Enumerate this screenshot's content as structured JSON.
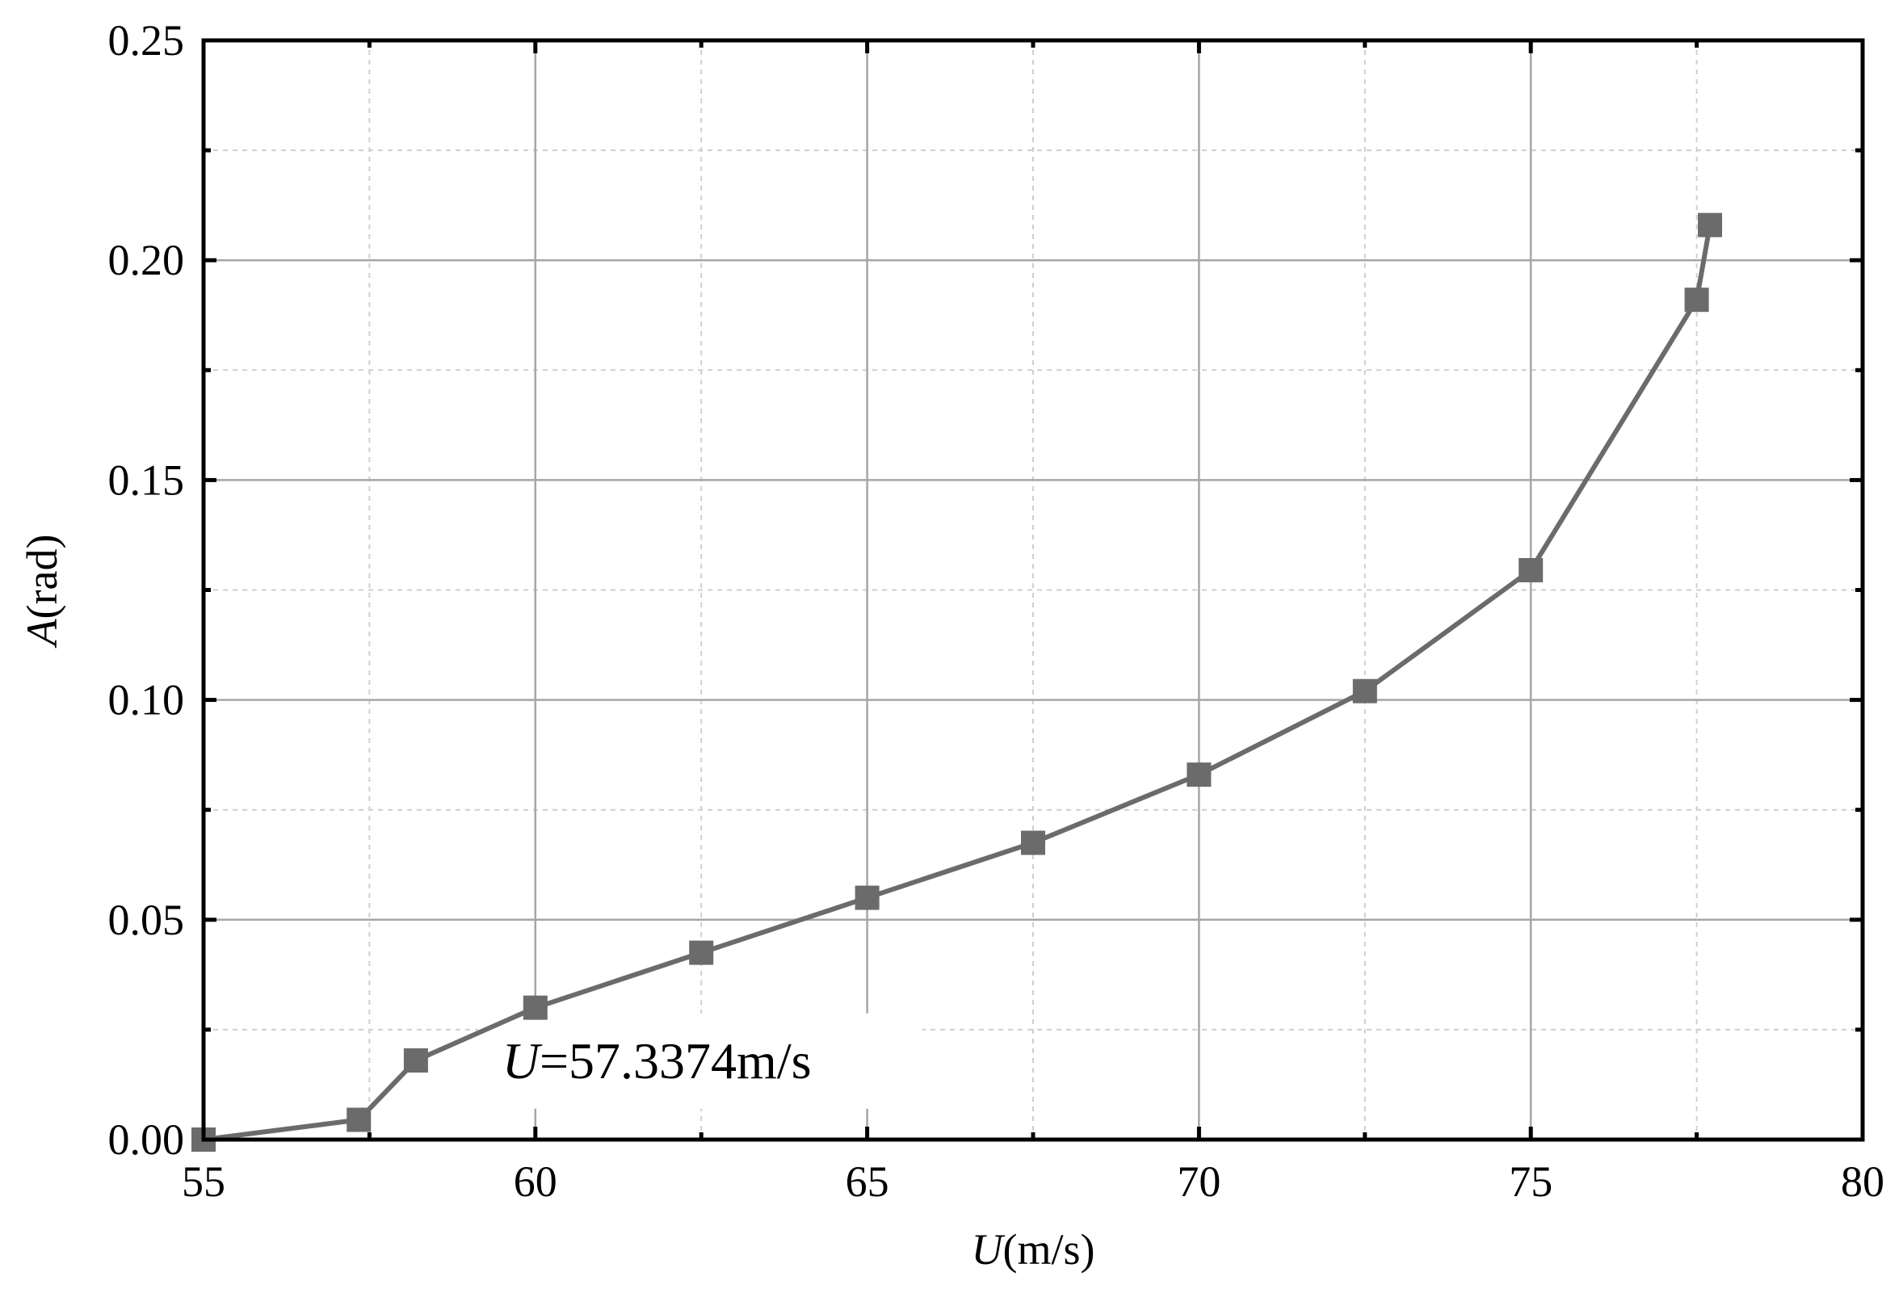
{
  "chart_data": {
    "type": "line",
    "title": "",
    "xlabel": {
      "symbol": "U",
      "unit": "(m/s)"
    },
    "ylabel": {
      "symbol": "A",
      "unit": "(rad)"
    },
    "xlim": [
      55,
      80
    ],
    "ylim": [
      0,
      0.25
    ],
    "x_ticks": [
      55,
      60,
      65,
      70,
      75,
      80
    ],
    "x_tick_labels": [
      "55",
      "60",
      "65",
      "70",
      "75",
      "80"
    ],
    "y_ticks": [
      0,
      0.05,
      0.1,
      0.15,
      0.2,
      0.25
    ],
    "y_tick_labels": [
      "0.00",
      "0.05",
      "0.10",
      "0.15",
      "0.20",
      "0.25"
    ],
    "grid": {
      "major": true,
      "minor": true
    },
    "series": [
      {
        "marker": "square",
        "color": "#6b6b6b",
        "x": [
          55.0,
          57.34,
          58.2,
          60.0,
          62.5,
          65.0,
          67.5,
          70.0,
          72.5,
          75.0,
          77.5,
          77.7
        ],
        "y": [
          0.0,
          0.0045,
          0.018,
          0.03,
          0.0425,
          0.055,
          0.0675,
          0.083,
          0.102,
          0.1295,
          0.191,
          0.208
        ]
      }
    ],
    "annotations": [
      {
        "symbol": "U",
        "text": "=57.3374m/s",
        "x": 59.5,
        "y": 0.014
      }
    ]
  }
}
